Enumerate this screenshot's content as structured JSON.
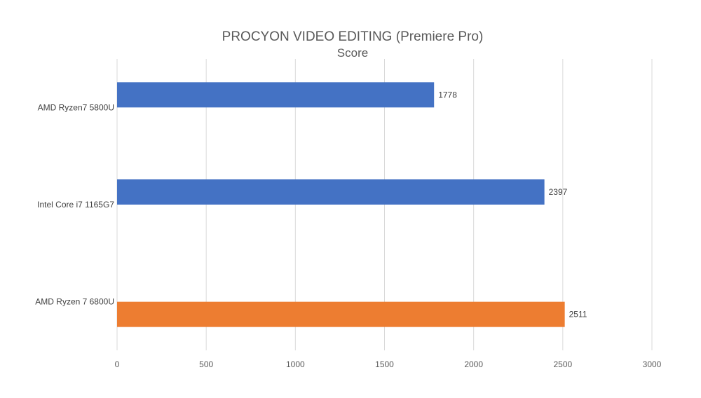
{
  "chart_data": {
    "type": "bar",
    "orientation": "horizontal",
    "title": "PROCYON VIDEO EDITING (Premiere Pro)",
    "subtitle": "Score",
    "xlabel": "",
    "ylabel": "",
    "categories": [
      "AMD Ryzen7 5800U",
      "Intel Core i7 1165G7",
      "AMD Ryzen 7 6800U"
    ],
    "series": [
      {
        "color": "#4472C4",
        "values": [
          1778,
          2397,
          null
        ]
      },
      {
        "color": "#ED7D31",
        "values": [
          null,
          null,
          2511
        ]
      }
    ],
    "data_labels": [
      "1778",
      "2397",
      "2511"
    ],
    "xlim": [
      0,
      3000
    ],
    "xticks": [
      0,
      500,
      1000,
      1500,
      2000,
      2500,
      3000
    ],
    "grid": true,
    "legend": "none"
  }
}
